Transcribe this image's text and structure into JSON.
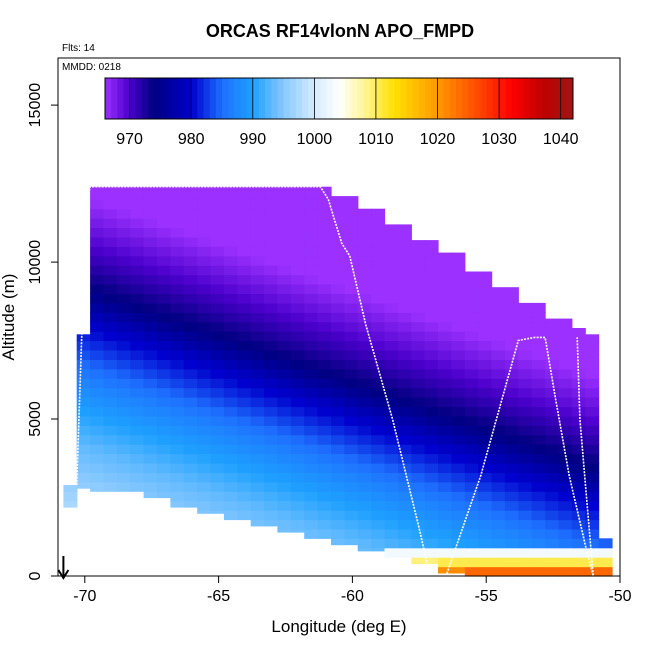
{
  "chart_data": {
    "type": "heatmap",
    "title": "ORCAS RF14vlonN APO_FMPD",
    "notes": {
      "flights": "Flts: 14",
      "date": "MMDD: 0218"
    },
    "xlabel": "Longitude (deg E)",
    "ylabel": "Altitude (m)",
    "xlim": [
      -71,
      -50
    ],
    "ylim": [
      0,
      16500
    ],
    "x_ticks": [
      {
        "value": -70,
        "label": "-70"
      },
      {
        "value": -65,
        "label": "-65"
      },
      {
        "value": -60,
        "label": "-60"
      },
      {
        "value": -55,
        "label": "-55"
      },
      {
        "value": -50,
        "label": "-50"
      }
    ],
    "y_ticks": [
      {
        "value": 0,
        "label": "0"
      },
      {
        "value": 5000,
        "label": "5000"
      },
      {
        "value": 10000,
        "label": "10000"
      },
      {
        "value": 15000,
        "label": "15000"
      }
    ],
    "colorbar": {
      "min": 966,
      "max": 1042,
      "ticks": [
        {
          "value": 970,
          "label": "970"
        },
        {
          "value": 980,
          "label": "980"
        },
        {
          "value": 990,
          "label": "990"
        },
        {
          "value": 1000,
          "label": "1000"
        },
        {
          "value": 1010,
          "label": "1010"
        },
        {
          "value": 1020,
          "label": "1020"
        },
        {
          "value": 1030,
          "label": "1030"
        },
        {
          "value": 1040,
          "label": "1040"
        }
      ],
      "stops": [
        {
          "value": 966,
          "color": "#9b30ff"
        },
        {
          "value": 970,
          "color": "#4b00cc"
        },
        {
          "value": 974,
          "color": "#000080"
        },
        {
          "value": 980,
          "color": "#0000cd"
        },
        {
          "value": 985,
          "color": "#1e6fff"
        },
        {
          "value": 990,
          "color": "#1ea0ff"
        },
        {
          "value": 995,
          "color": "#87c8ff"
        },
        {
          "value": 1000,
          "color": "#d4ecff"
        },
        {
          "value": 1004,
          "color": "#ffffff"
        },
        {
          "value": 1008,
          "color": "#fff59a"
        },
        {
          "value": 1013,
          "color": "#ffe000"
        },
        {
          "value": 1020,
          "color": "#ff9900"
        },
        {
          "value": 1027,
          "color": "#ff4400"
        },
        {
          "value": 1032,
          "color": "#ff0000"
        },
        {
          "value": 1037,
          "color": "#c00000"
        },
        {
          "value": 1042,
          "color": "#a01515"
        }
      ]
    },
    "curtain": {
      "description": "Gridded APO_FMPD values along the flight curtain; columns by longitude, rows by altitude",
      "columns": [
        {
          "lon": -70.6,
          "bottom": 2200,
          "top": 2900
        },
        {
          "lon": -70.3,
          "bottom": 2800,
          "top": 7700
        },
        {
          "lon": -70.0,
          "bottom": 2800,
          "top": 11800
        },
        {
          "lon": -69.8,
          "bottom": 2700,
          "top": 12400
        },
        {
          "lon": -69.0,
          "bottom": 2700,
          "top": 12400
        },
        {
          "lon": -68.0,
          "bottom": 2500,
          "top": 12400
        },
        {
          "lon": -67.0,
          "bottom": 2200,
          "top": 12400
        },
        {
          "lon": -66.0,
          "bottom": 2000,
          "top": 12400
        },
        {
          "lon": -65.0,
          "bottom": 1800,
          "top": 12400
        },
        {
          "lon": -64.0,
          "bottom": 1600,
          "top": 12400
        },
        {
          "lon": -63.0,
          "bottom": 1400,
          "top": 12400
        },
        {
          "lon": -62.0,
          "bottom": 1200,
          "top": 12400
        },
        {
          "lon": -61.0,
          "bottom": 1000,
          "top": 12100
        },
        {
          "lon": -60.0,
          "bottom": 800,
          "top": 11700
        },
        {
          "lon": -59.0,
          "bottom": 600,
          "top": 11200
        },
        {
          "lon": -58.0,
          "bottom": 400,
          "top": 10700
        },
        {
          "lon": -57.0,
          "bottom": 100,
          "top": 10300
        },
        {
          "lon": -56.0,
          "bottom": 0,
          "top": 9700
        },
        {
          "lon": -55.0,
          "bottom": 0,
          "top": 9200
        },
        {
          "lon": -54.0,
          "bottom": 0,
          "top": 8700
        },
        {
          "lon": -53.0,
          "bottom": 0,
          "top": 8200
        },
        {
          "lon": -52.0,
          "bottom": 0,
          "top": 7900
        },
        {
          "lon": -51.4,
          "bottom": 0,
          "top": 7700
        },
        {
          "lon": -51.0,
          "bottom": 0,
          "top": 4700
        },
        {
          "lon": -50.8,
          "bottom": 0,
          "top": 1200
        }
      ],
      "profile": [
        {
          "alt": 0,
          "value": 1033
        },
        {
          "alt": 300,
          "value": 1015
        },
        {
          "alt": 700,
          "value": 1003
        },
        {
          "alt": 1500,
          "value": 999
        },
        {
          "alt": 2500,
          "value": 997
        },
        {
          "alt": 3500,
          "value": 995
        },
        {
          "alt": 4500,
          "value": 993
        },
        {
          "alt": 5500,
          "value": 990
        },
        {
          "alt": 6500,
          "value": 987
        },
        {
          "alt": 7500,
          "value": 983
        },
        {
          "alt": 8500,
          "value": 979
        },
        {
          "alt": 9500,
          "value": 974
        },
        {
          "alt": 10500,
          "value": 971
        },
        {
          "alt": 11200,
          "value": 969
        },
        {
          "alt": 12400,
          "value": 966
        }
      ],
      "tilt_m_per_deg": 300
    },
    "flight_track": [
      [
        -70.3,
        2900
      ],
      [
        -70.1,
        8000
      ],
      [
        -69.9,
        12000
      ],
      [
        -69.8,
        12400
      ],
      [
        -61.2,
        12400
      ],
      [
        -60.9,
        12000
      ],
      [
        -60.4,
        10600
      ],
      [
        -60.1,
        10200
      ],
      [
        -59.5,
        8000
      ],
      [
        -58.5,
        5000
      ],
      [
        -57.5,
        1500
      ],
      [
        -57.1,
        0
      ],
      [
        -56.5,
        0
      ],
      [
        -55.2,
        3200
      ],
      [
        -53.8,
        7500
      ],
      [
        -53.2,
        7600
      ],
      [
        -52.8,
        7600
      ],
      [
        -52.4,
        5600
      ],
      [
        -51.9,
        3200
      ],
      [
        -51.3,
        1000
      ],
      [
        -51.0,
        0
      ],
      [
        -51.3,
        3000
      ],
      [
        -51.5,
        5000
      ],
      [
        -51.6,
        7600
      ]
    ],
    "arrow_marker": {
      "lon": -70.8,
      "direction": "down"
    }
  }
}
